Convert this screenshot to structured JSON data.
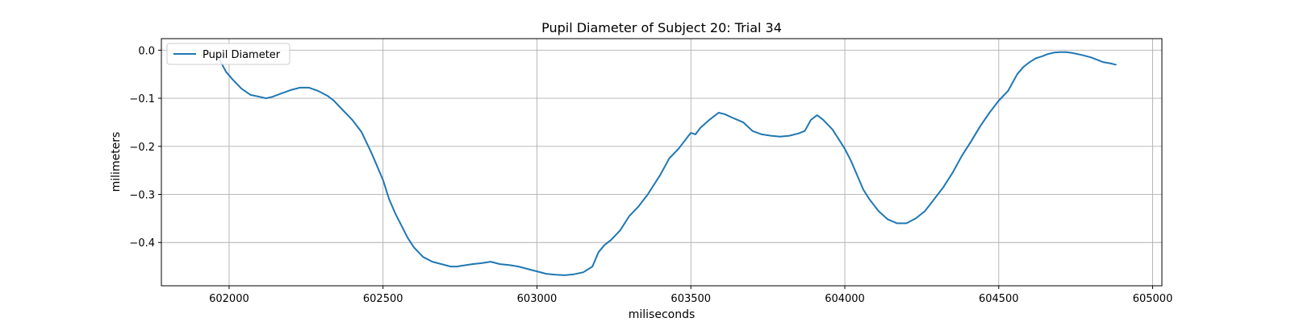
{
  "chart_data": {
    "type": "line",
    "title": "Pupil Diameter of Subject 20: Trial 34",
    "xlabel": "miliseconds",
    "ylabel": "milimeters",
    "xlim": [
      601780,
      605030
    ],
    "ylim": [
      -0.49,
      0.024
    ],
    "xticks": [
      602000,
      602500,
      603000,
      603500,
      604000,
      604500,
      605000
    ],
    "yticks": [
      0.0,
      -0.1,
      -0.2,
      -0.3,
      -0.4
    ],
    "xtick_labels": [
      "602000",
      "602500",
      "603000",
      "603500",
      "604000",
      "604500",
      "605000"
    ],
    "ytick_labels": [
      "0.0",
      "−0.1",
      "−0.2",
      "−0.3",
      "−0.4"
    ],
    "grid": true,
    "legend_placement": "top-left",
    "series": [
      {
        "name": "Pupil Diameter",
        "color": "#1f77b4",
        "x": [
          601965,
          601990,
          602010,
          602040,
          602070,
          602100,
          602120,
          602140,
          602170,
          602200,
          602230,
          602260,
          602290,
          602320,
          602340,
          602370,
          602400,
          602430,
          602460,
          602480,
          602500,
          602520,
          602540,
          602560,
          602580,
          602600,
          602630,
          602660,
          602690,
          602720,
          602740,
          602760,
          602790,
          602820,
          602850,
          602880,
          602910,
          602940,
          602970,
          603000,
          603030,
          603060,
          603090,
          603120,
          603150,
          603180,
          603200,
          603220,
          603240,
          603270,
          603300,
          603330,
          603360,
          603400,
          603430,
          603460,
          603490,
          603500,
          603515,
          603530,
          603560,
          603590,
          603610,
          603640,
          603670,
          603700,
          603730,
          603760,
          603790,
          603820,
          603850,
          603870,
          603890,
          603910,
          603930,
          603960,
          603980,
          604000,
          604020,
          604040,
          604060,
          604080,
          604110,
          604140,
          604170,
          604200,
          604230,
          604260,
          604290,
          604320,
          604350,
          604380,
          604410,
          604440,
          604470,
          604500,
          604530,
          604560,
          604580,
          604600,
          604620,
          604640,
          604660,
          604680,
          604700,
          604720,
          604740,
          604770,
          604800,
          604820,
          604840,
          604860,
          604880
        ],
        "y": [
          -0.015,
          -0.045,
          -0.06,
          -0.08,
          -0.093,
          -0.097,
          -0.1,
          -0.097,
          -0.09,
          -0.083,
          -0.078,
          -0.078,
          -0.085,
          -0.095,
          -0.105,
          -0.125,
          -0.145,
          -0.17,
          -0.21,
          -0.24,
          -0.27,
          -0.31,
          -0.34,
          -0.365,
          -0.39,
          -0.41,
          -0.43,
          -0.44,
          -0.445,
          -0.45,
          -0.45,
          -0.448,
          -0.445,
          -0.443,
          -0.44,
          -0.445,
          -0.447,
          -0.45,
          -0.455,
          -0.46,
          -0.465,
          -0.467,
          -0.468,
          -0.466,
          -0.462,
          -0.45,
          -0.42,
          -0.405,
          -0.395,
          -0.375,
          -0.345,
          -0.325,
          -0.3,
          -0.26,
          -0.225,
          -0.205,
          -0.18,
          -0.172,
          -0.175,
          -0.162,
          -0.145,
          -0.13,
          -0.133,
          -0.142,
          -0.15,
          -0.168,
          -0.175,
          -0.178,
          -0.18,
          -0.178,
          -0.173,
          -0.168,
          -0.145,
          -0.135,
          -0.145,
          -0.165,
          -0.185,
          -0.205,
          -0.23,
          -0.26,
          -0.29,
          -0.31,
          -0.335,
          -0.352,
          -0.36,
          -0.36,
          -0.35,
          -0.335,
          -0.31,
          -0.285,
          -0.255,
          -0.22,
          -0.19,
          -0.158,
          -0.13,
          -0.105,
          -0.085,
          -0.05,
          -0.035,
          -0.025,
          -0.017,
          -0.013,
          -0.008,
          -0.005,
          -0.004,
          -0.004,
          -0.006,
          -0.01,
          -0.015,
          -0.02,
          -0.025,
          -0.027,
          -0.03
        ]
      }
    ]
  }
}
